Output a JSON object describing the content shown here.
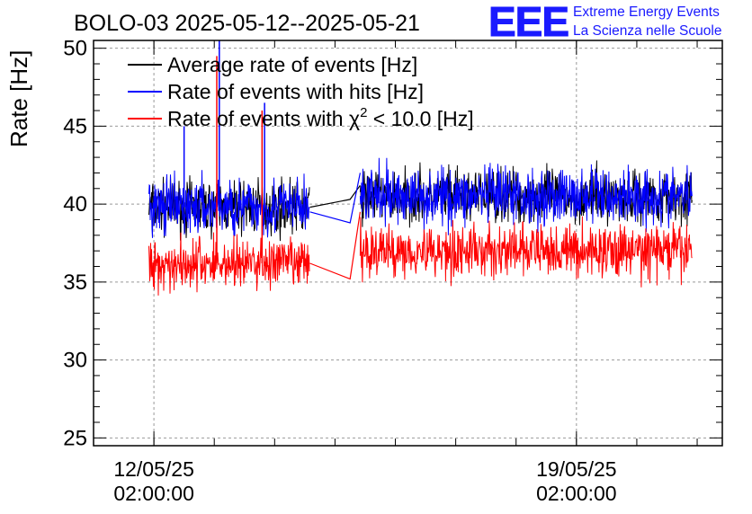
{
  "chart_data": {
    "type": "line",
    "title": "BOLO-03 2025-05-12--2025-05-21",
    "ylabel": "Rate [Hz]",
    "xlabel": "",
    "ylim": [
      24.5,
      50.5
    ],
    "yticks": [
      25,
      30,
      35,
      40,
      45,
      50
    ],
    "x_range_days": [
      "2025-05-11T02:00:00",
      "2025-05-21T12:00:00"
    ],
    "xticks": [
      {
        "x": "2025-05-12T02:00:00",
        "label": [
          "12/05/25",
          "02:00:00"
        ]
      },
      {
        "x": "2025-05-19T02:00:00",
        "label": [
          "19/05/25",
          "02:00:00"
        ]
      }
    ],
    "grid": true,
    "legend_position": "top-left",
    "series": [
      {
        "name": "Average rate of events [Hz]",
        "color": "#000000",
        "segments": [
          {
            "from": "2025-05-12T00:00:00",
            "to": "2025-05-14T16:00:00",
            "mean": 39.8,
            "spread": 1.2
          },
          {
            "from": "2025-05-15T12:00:00",
            "to": "2025-05-21T00:00:00",
            "mean": 40.5,
            "spread": 1.2
          }
        ],
        "gap": [
          [
            "2025-05-14T16:00:00",
            39.8
          ],
          [
            "2025-05-15T08:00:00",
            40.3
          ],
          [
            "2025-05-15T12:00:00",
            41.2
          ]
        ]
      },
      {
        "name": "Rate of events with hits [Hz]",
        "color": "#0000ff",
        "segments": [
          {
            "from": "2025-05-12T00:00:00",
            "to": "2025-05-14T16:00:00",
            "mean": 39.8,
            "spread": 1.3
          },
          {
            "from": "2025-05-15T12:00:00",
            "to": "2025-05-21T00:00:00",
            "mean": 40.5,
            "spread": 1.3
          }
        ],
        "gap": [
          [
            "2025-05-14T16:00:00",
            39.5
          ],
          [
            "2025-05-15T08:00:00",
            38.8
          ],
          [
            "2025-05-15T12:00:00",
            42.0
          ]
        ],
        "spikes": [
          [
            "2025-05-13T04:00:00",
            50.5
          ],
          [
            "2025-05-13T22:00:00",
            46.5
          ],
          [
            "2025-05-12T14:00:00",
            45.0
          ]
        ]
      },
      {
        "name": "Rate of events with χ² < 10.0 [Hz]",
        "color": "#ff0000",
        "segments": [
          {
            "from": "2025-05-12T00:00:00",
            "to": "2025-05-14T16:00:00",
            "mean": 36.2,
            "spread": 1.2
          },
          {
            "from": "2025-05-15T12:00:00",
            "to": "2025-05-21T00:00:00",
            "mean": 37.0,
            "spread": 1.2
          }
        ],
        "gap": [
          [
            "2025-05-14T16:00:00",
            36.2
          ],
          [
            "2025-05-15T08:00:00",
            35.2
          ],
          [
            "2025-05-15T12:00:00",
            39.5
          ]
        ],
        "spikes": [
          [
            "2025-05-13T03:00:00",
            49.5
          ],
          [
            "2025-05-13T21:00:00",
            46.0
          ]
        ]
      }
    ],
    "legend": [
      {
        "label": "Average rate of events [Hz]",
        "color": "#000000"
      },
      {
        "label": "Rate of events with hits [Hz]",
        "color": "#0000ff"
      },
      {
        "label_pre": "Rate of events with ",
        "label_chi": "χ",
        "label_sup": "2",
        "label_post": " < 10.0 [Hz]",
        "color": "#ff0000"
      }
    ]
  },
  "logo": {
    "letters": "EEE",
    "line1": "Extreme Energy Events",
    "line2": "La Scienza nelle Scuole",
    "color": "#1a1aff"
  }
}
